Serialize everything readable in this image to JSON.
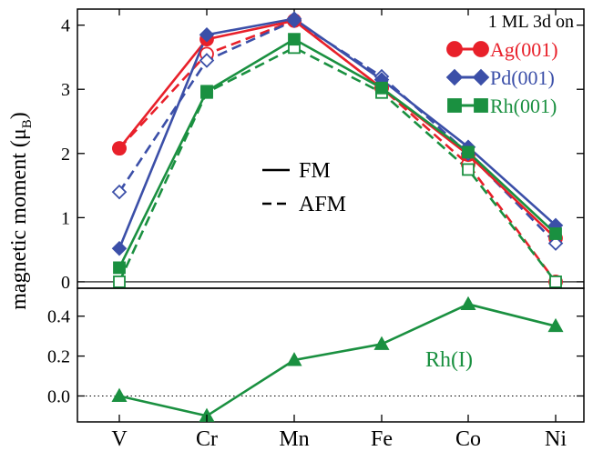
{
  "chart_data": {
    "type": "line",
    "categories": [
      "V",
      "Cr",
      "Mn",
      "Fe",
      "Co",
      "Ni"
    ],
    "ylabel_main": "magnetic moment (μ",
    "ylabel_sub": "B",
    "ylabel_close": ")",
    "legend_title": "1 ML 3d on",
    "legend_position": "top-right",
    "style_legend": {
      "solid": "FM",
      "dashed": "AFM"
    },
    "colors": {
      "ag": "#e8202a",
      "pd": "#3b4fa8",
      "rh": "#1a9040"
    },
    "top_panel": {
      "ylim": [
        -0.1,
        4.25
      ],
      "yticks": [
        "0",
        "1",
        "2",
        "3",
        "4"
      ],
      "series": [
        {
          "name": "Ag(001)",
          "key": "ag",
          "marker": "circle",
          "fm": [
            2.08,
            3.78,
            4.07,
            3.02,
            1.98,
            0.68
          ],
          "afm": [
            2.08,
            3.55,
            4.07,
            3.02,
            1.83,
            0.0
          ]
        },
        {
          "name": "Pd(001)",
          "key": "pd",
          "marker": "diamond",
          "fm": [
            0.52,
            3.85,
            4.1,
            3.15,
            2.1,
            0.88
          ],
          "afm": [
            1.4,
            3.45,
            4.07,
            3.2,
            2.0,
            0.6
          ]
        },
        {
          "name": "Rh(001)",
          "key": "rh",
          "marker": "square",
          "fm": [
            0.22,
            2.97,
            3.78,
            3.02,
            2.02,
            0.75
          ],
          "afm": [
            0.0,
            2.95,
            3.65,
            2.95,
            1.75,
            0.0
          ]
        }
      ]
    },
    "bottom_panel": {
      "ylim": [
        -0.13,
        0.54
      ],
      "yticks": [
        "0.0",
        "0.2",
        "0.4"
      ],
      "series": [
        {
          "name": "Rh(I)",
          "key": "rh",
          "marker": "triangle",
          "values": [
            0.0,
            -0.1,
            0.18,
            0.26,
            0.46,
            0.35
          ]
        }
      ]
    }
  }
}
